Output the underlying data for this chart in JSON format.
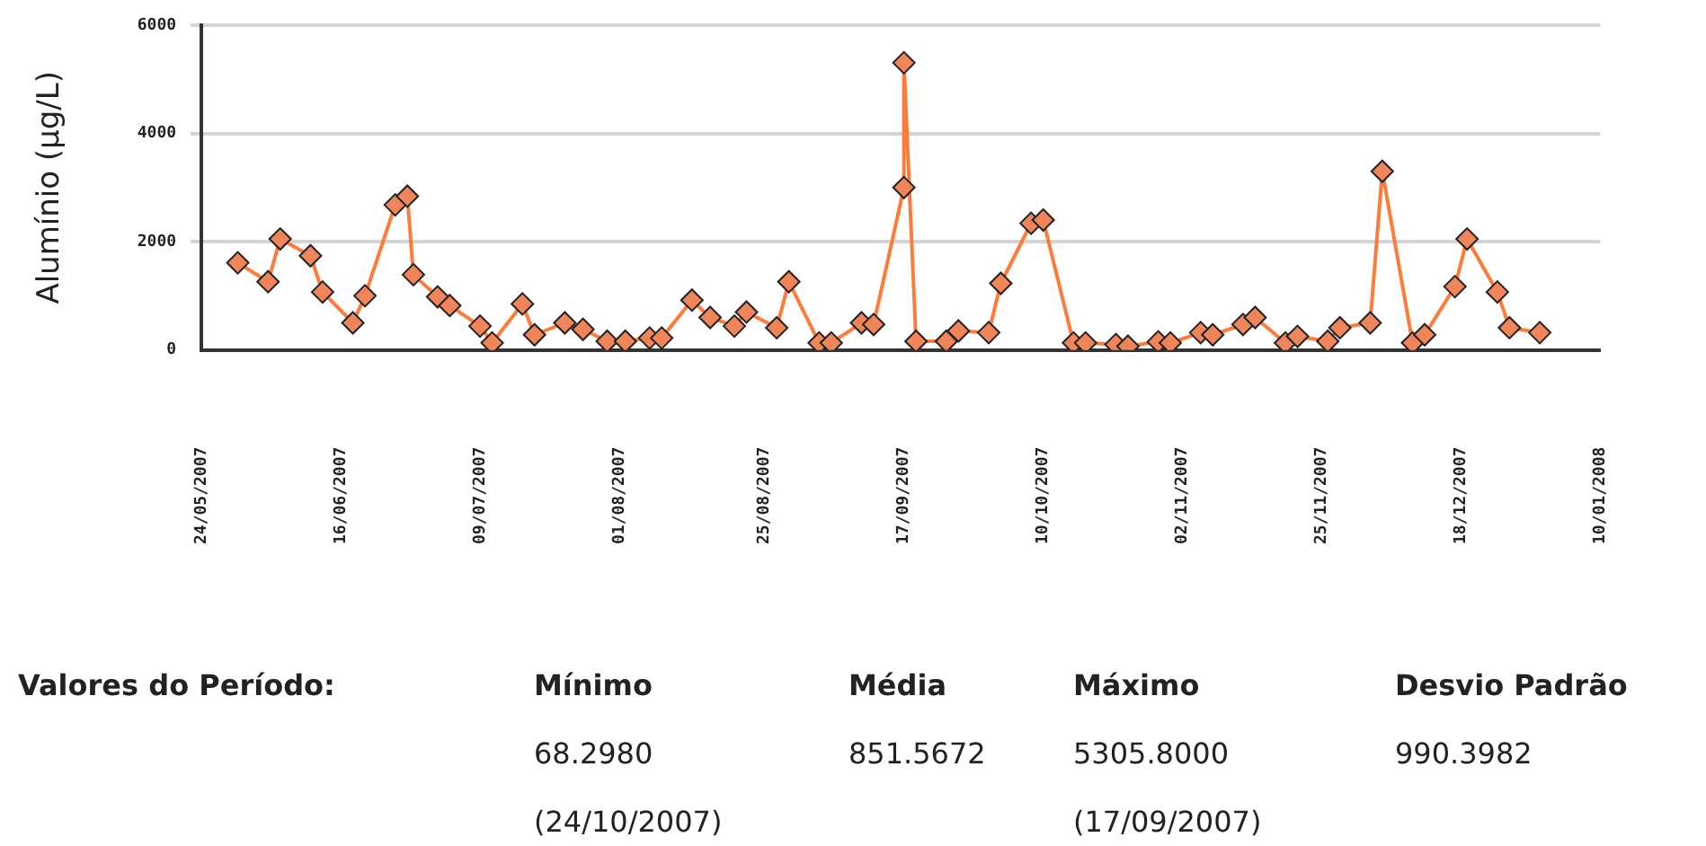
{
  "chart_data": {
    "type": "line",
    "ylabel": "Alumínio (µg/L)",
    "x": [
      "2007-05-30",
      "2007-06-04",
      "2007-06-06",
      "2007-06-11",
      "2007-06-13",
      "2007-06-18",
      "2007-06-20",
      "2007-06-25",
      "2007-06-27",
      "2007-06-28",
      "2007-07-02",
      "2007-07-04",
      "2007-07-09",
      "2007-07-11",
      "2007-07-16",
      "2007-07-18",
      "2007-07-23",
      "2007-07-26",
      "2007-07-30",
      "2007-08-02",
      "2007-08-06",
      "2007-08-08",
      "2007-08-13",
      "2007-08-16",
      "2007-08-20",
      "2007-08-22",
      "2007-08-27",
      "2007-08-29",
      "2007-09-03",
      "2007-09-05",
      "2007-09-10",
      "2007-09-12",
      "2007-09-17",
      "2007-09-17",
      "2007-09-19",
      "2007-09-24",
      "2007-09-26",
      "2007-10-01",
      "2007-10-03",
      "2007-10-08",
      "2007-10-10",
      "2007-10-15",
      "2007-10-17",
      "2007-10-22",
      "2007-10-24",
      "2007-10-29",
      "2007-10-31",
      "2007-11-05",
      "2007-11-07",
      "2007-11-12",
      "2007-11-14",
      "2007-11-19",
      "2007-11-21",
      "2007-11-26",
      "2007-11-28",
      "2007-12-03",
      "2007-12-05",
      "2007-12-10",
      "2007-12-12",
      "2007-12-17",
      "2007-12-19",
      "2007-12-24",
      "2007-12-26",
      "2007-12-31"
    ],
    "series": [
      {
        "color": "#ff7b3a",
        "values": [
          1610,
          1260,
          2050,
          1740,
          1070,
          500,
          1000,
          2680,
          2840,
          1390,
          980,
          820,
          440,
          130,
          850,
          280,
          500,
          380,
          160,
          160,
          220,
          220,
          920,
          600,
          440,
          700,
          410,
          1260,
          130,
          130,
          500,
          470,
          3000,
          5305.8,
          160,
          160,
          350,
          320,
          1230,
          2340,
          2400,
          130,
          130,
          100,
          68.298,
          150,
          130,
          320,
          280,
          470,
          600,
          130,
          250,
          160,
          410,
          500,
          3300,
          130,
          280,
          1170,
          2050,
          1070,
          410,
          320
        ]
      }
    ],
    "xlim": [
      "2007-05-24",
      "2008-01-10"
    ],
    "xticks": [
      {
        "value": "2007-05-24",
        "label": "24/05/2007"
      },
      {
        "value": "2007-06-16",
        "label": "16/06/2007"
      },
      {
        "value": "2007-07-09",
        "label": "09/07/2007"
      },
      {
        "value": "2007-08-01",
        "label": "01/08/2007"
      },
      {
        "value": "2007-08-25",
        "label": "25/08/2007"
      },
      {
        "value": "2007-09-17",
        "label": "17/09/2007"
      },
      {
        "value": "2007-10-10",
        "label": "10/10/2007"
      },
      {
        "value": "2007-11-02",
        "label": "02/11/2007"
      },
      {
        "value": "2007-11-25",
        "label": "25/11/2007"
      },
      {
        "value": "2007-12-18",
        "label": "18/12/2007"
      },
      {
        "value": "2008-01-10",
        "label": "10/01/2008"
      }
    ],
    "ylim": [
      0,
      6000
    ],
    "yticks": [
      0,
      2000,
      4000,
      6000
    ],
    "grid": "y",
    "legend": false,
    "marker": "diamond",
    "line_style": "solid",
    "annotations": [
      "Valores do Período:",
      "Mínimo",
      "Média",
      "Máximo",
      "Desvio Padrão",
      "68.2980",
      "851.5672",
      "5305.8000",
      "990.3982",
      "(24/10/2007)",
      "(17/09/2007)"
    ]
  }
}
